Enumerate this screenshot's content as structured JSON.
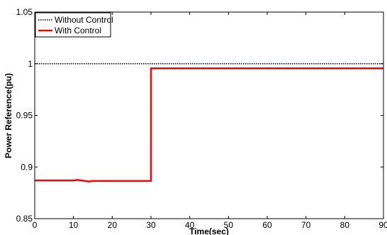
{
  "chart_data": {
    "type": "line",
    "xlabel": "Time(sec)",
    "ylabel": "Power Reference(pu)",
    "xlim": [
      0,
      90
    ],
    "ylim": [
      0.85,
      1.05
    ],
    "x_ticks": [
      0,
      10,
      20,
      30,
      40,
      50,
      60,
      70,
      80,
      90
    ],
    "y_ticks": [
      0.85,
      0.9,
      0.95,
      1,
      1.05
    ],
    "x_tick_labels": [
      "0",
      "10",
      "20",
      "30",
      "40",
      "50",
      "60",
      "70",
      "80",
      "90"
    ],
    "y_tick_labels": [
      "0.85",
      "0.9",
      "0.95",
      "1",
      "1.05"
    ],
    "grid": false,
    "legend_position": "top-left",
    "series": [
      {
        "name": "Without Control",
        "color": "#000000",
        "style": "dotted",
        "x": [
          0,
          90
        ],
        "y": [
          1.0,
          1.0
        ]
      },
      {
        "name": "With Control",
        "color": "#ff0000",
        "style": "solid",
        "x": [
          0,
          10,
          11,
          12,
          13,
          14,
          15,
          16,
          20,
          30,
          30.01,
          90
        ],
        "y": [
          0.887,
          0.887,
          0.8875,
          0.887,
          0.8865,
          0.886,
          0.8865,
          0.8865,
          0.8865,
          0.8865,
          0.9955,
          0.9955
        ]
      }
    ]
  }
}
